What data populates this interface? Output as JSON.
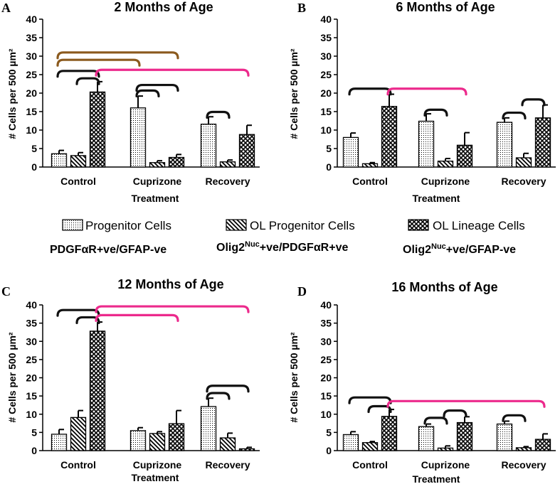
{
  "chart_data": [
    {
      "type": "bar",
      "label": "A",
      "title": "2 Months of Age",
      "ylabel": "# Cells per 500 µm²",
      "xlabel": "Treatment",
      "ylim": [
        0,
        40
      ],
      "yticks": [
        "0",
        "5",
        "10",
        "15",
        "20",
        "25",
        "30",
        "35",
        "40"
      ],
      "categories": [
        "Control",
        "Cuprizone",
        "Recovery"
      ],
      "series": [
        {
          "name": "Progenitor Cells",
          "values": [
            3.6,
            16.0,
            11.6
          ],
          "errors": [
            0.9,
            3.2,
            2.0
          ]
        },
        {
          "name": "OL Progenitor Cells",
          "values": [
            3.1,
            1.2,
            1.4
          ],
          "errors": [
            0.8,
            0.5,
            0.5
          ]
        },
        {
          "name": "OL Lineage Cells",
          "values": [
            20.3,
            2.6,
            8.8
          ],
          "errors": [
            2.8,
            0.8,
            2.5
          ]
        }
      ]
    },
    {
      "type": "bar",
      "label": "B",
      "title": "6 Months of Age",
      "ylabel": "# Cells per 500 µm²",
      "xlabel": "Treatment",
      "ylim": [
        0,
        40
      ],
      "yticks": [
        "0",
        "5",
        "10",
        "15",
        "20",
        "25",
        "30",
        "35",
        "40"
      ],
      "categories": [
        "Control",
        "Cuprizone",
        "Recovery"
      ],
      "series": [
        {
          "name": "Progenitor Cells",
          "values": [
            8.0,
            12.4,
            12.1
          ],
          "errors": [
            1.2,
            2.0,
            1.2
          ]
        },
        {
          "name": "OL Progenitor Cells",
          "values": [
            0.9,
            1.6,
            2.5
          ],
          "errors": [
            0.3,
            0.7,
            1.2
          ]
        },
        {
          "name": "OL Lineage Cells",
          "values": [
            16.4,
            5.9,
            13.3
          ],
          "errors": [
            3.3,
            3.4,
            3.5
          ]
        }
      ]
    },
    {
      "type": "bar",
      "label": "C",
      "title": "12 Months of Age",
      "ylabel": "# Cells per 500 µm²",
      "xlabel": "Treatment",
      "ylim": [
        0,
        40
      ],
      "yticks": [
        "0",
        "5",
        "10",
        "15",
        "20",
        "25",
        "30",
        "35",
        "40"
      ],
      "categories": [
        "Control",
        "Cuprizone",
        "Recovery"
      ],
      "series": [
        {
          "name": "Progenitor Cells",
          "values": [
            4.5,
            5.5,
            12.1
          ],
          "errors": [
            1.3,
            0.8,
            2.3
          ]
        },
        {
          "name": "OL Progenitor Cells",
          "values": [
            9.1,
            4.7,
            3.5
          ],
          "errors": [
            1.9,
            0.5,
            1.3
          ]
        },
        {
          "name": "OL Lineage Cells",
          "values": [
            32.8,
            7.4,
            0.5
          ],
          "errors": [
            2.5,
            3.6,
            0.4
          ]
        }
      ]
    },
    {
      "type": "bar",
      "label": "D",
      "title": "16 Months of Age",
      "ylabel": "# Cells per 500 µm²",
      "xlabel": "Treatment",
      "ylim": [
        0,
        40
      ],
      "yticks": [
        "0",
        "5",
        "10",
        "15",
        "20",
        "25",
        "30",
        "35",
        "40"
      ],
      "categories": [
        "Control",
        "Cuprizone",
        "Recovery"
      ],
      "series": [
        {
          "name": "Progenitor Cells",
          "values": [
            4.4,
            6.6,
            7.3
          ],
          "errors": [
            0.8,
            0.7,
            0.8
          ]
        },
        {
          "name": "OL Progenitor Cells",
          "values": [
            2.2,
            0.7,
            0.8
          ],
          "errors": [
            0.3,
            0.6,
            0.3
          ]
        },
        {
          "name": "OL Lineage Cells",
          "values": [
            9.4,
            7.7,
            3.1
          ],
          "errors": [
            1.9,
            1.6,
            1.5
          ]
        }
      ]
    }
  ],
  "legend": {
    "items": [
      {
        "label": "Progenitor Cells",
        "marker": "PDGFαR+ve/GFAP-ve",
        "marker_sup": ""
      },
      {
        "label": "OL Progenitor Cells",
        "marker": "Olig2",
        "marker_sup": "Nuc",
        "marker_rest": "+ve/PDGFαR+ve"
      },
      {
        "label": "OL Lineage Cells",
        "marker": "Olig2",
        "marker_sup": "Nuc",
        "marker_rest": "+ve/GFAP-ve"
      }
    ]
  },
  "colors": {
    "axis": "#000000",
    "bar_fill": "#ffffff",
    "hatch": "#000000",
    "bracket_brown": "#8b5a1e",
    "bracket_black": "#111111",
    "bracket_pink": "#ec2a8c"
  },
  "significance_brackets": [
    [
      {
        "from": [
          0,
          0
        ],
        "to": [
          1,
          2
        ],
        "level": 31,
        "color": "brown"
      },
      {
        "from": [
          0,
          0
        ],
        "to": [
          1,
          0
        ],
        "level": 29,
        "color": "brown"
      },
      {
        "from": [
          0,
          0
        ],
        "to": [
          0,
          2
        ],
        "level": 26,
        "color": "black"
      },
      {
        "from": [
          0,
          1
        ],
        "to": [
          0,
          2
        ],
        "level": 24,
        "color": "black"
      },
      {
        "from": [
          0,
          2
        ],
        "to": [
          2,
          2
        ],
        "level": 26.3,
        "color": "pink"
      },
      {
        "from": [
          1,
          0
        ],
        "to": [
          1,
          2
        ],
        "level": 22.2,
        "color": "black"
      },
      {
        "from": [
          1,
          0
        ],
        "to": [
          1,
          1
        ],
        "level": 20.7,
        "color": "black"
      },
      {
        "from": [
          2,
          0
        ],
        "to": [
          2,
          1
        ],
        "level": 14.9,
        "color": "black"
      }
    ],
    [
      {
        "from": [
          0,
          0
        ],
        "to": [
          0,
          2
        ],
        "level": 21.2,
        "color": "black"
      },
      {
        "from": [
          0,
          2
        ],
        "to": [
          1,
          2
        ],
        "level": 21.2,
        "color": "pink"
      },
      {
        "from": [
          1,
          0
        ],
        "to": [
          1,
          1
        ],
        "level": 15.5,
        "color": "black"
      },
      {
        "from": [
          2,
          0
        ],
        "to": [
          2,
          1
        ],
        "level": 14.7,
        "color": "black"
      },
      {
        "from": [
          2,
          1
        ],
        "to": [
          2,
          2
        ],
        "level": 18.3,
        "color": "black"
      }
    ],
    [
      {
        "from": [
          0,
          0
        ],
        "to": [
          0,
          2
        ],
        "level": 38.6,
        "color": "black"
      },
      {
        "from": [
          0,
          1
        ],
        "to": [
          0,
          2
        ],
        "level": 36.6,
        "color": "black"
      },
      {
        "from": [
          0,
          2
        ],
        "to": [
          2,
          2
        ],
        "level": 39.6,
        "color": "pink"
      },
      {
        "from": [
          0,
          2
        ],
        "to": [
          1,
          2
        ],
        "level": 37.2,
        "color": "pink"
      },
      {
        "from": [
          2,
          0
        ],
        "to": [
          2,
          1
        ],
        "level": 15.8,
        "color": "black"
      },
      {
        "from": [
          2,
          0
        ],
        "to": [
          2,
          2
        ],
        "level": 17.8,
        "color": "black"
      }
    ],
    [
      {
        "from": [
          0,
          0
        ],
        "to": [
          0,
          2
        ],
        "level": 14.6,
        "color": "black"
      },
      {
        "from": [
          0,
          1
        ],
        "to": [
          0,
          2
        ],
        "level": 12.2,
        "color": "black"
      },
      {
        "from": [
          0,
          2
        ],
        "to": [
          2,
          2
        ],
        "level": 13.6,
        "color": "pink"
      },
      {
        "from": [
          1,
          0
        ],
        "to": [
          1,
          1
        ],
        "level": 9.0,
        "color": "black"
      },
      {
        "from": [
          1,
          1
        ],
        "to": [
          1,
          2
        ],
        "level": 11.0,
        "color": "black"
      },
      {
        "from": [
          2,
          0
        ],
        "to": [
          2,
          1
        ],
        "level": 9.7,
        "color": "black"
      }
    ]
  ]
}
